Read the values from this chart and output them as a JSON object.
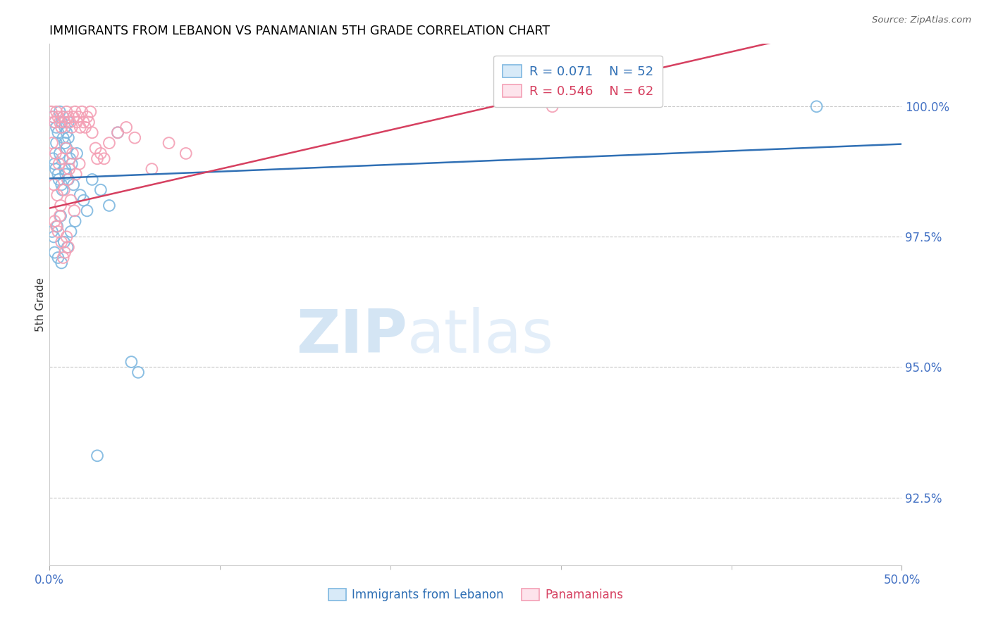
{
  "title": "IMMIGRANTS FROM LEBANON VS PANAMANIAN 5TH GRADE CORRELATION CHART",
  "source": "Source: ZipAtlas.com",
  "ylabel": "5th Grade",
  "yticks": [
    100.0,
    97.5,
    95.0,
    92.5
  ],
  "ytick_labels": [
    "100.0%",
    "97.5%",
    "95.0%",
    "92.5%"
  ],
  "ymin": 91.2,
  "ymax": 101.2,
  "xmin": 0.0,
  "xmax": 50.0,
  "legend_blue_r": "R = 0.071",
  "legend_blue_n": "N = 52",
  "legend_pink_r": "R = 0.546",
  "legend_pink_n": "N = 62",
  "blue_color": "#7fb8e0",
  "pink_color": "#f4a0b5",
  "blue_line_color": "#3070b5",
  "pink_line_color": "#d64060",
  "axis_label_color": "#4472C4",
  "title_color": "#000000",
  "watermark_zip": "ZIP",
  "watermark_atlas": "atlas",
  "blue_scatter_x": [
    0.2,
    0.3,
    0.4,
    0.5,
    0.6,
    0.7,
    0.8,
    0.9,
    1.0,
    1.1,
    0.3,
    0.5,
    0.7,
    0.9,
    1.1,
    1.3,
    0.4,
    0.6,
    0.8,
    1.0,
    0.2,
    0.35,
    0.55,
    0.75,
    0.95,
    1.2,
    1.4,
    1.6,
    1.8,
    2.0,
    2.5,
    3.0,
    3.5,
    4.0,
    1.5,
    0.15,
    0.25,
    0.45,
    0.65,
    0.85,
    1.05,
    1.25,
    0.3,
    0.5,
    0.7,
    4.8,
    2.2,
    45.0,
    0.9,
    1.1,
    5.2,
    2.8
  ],
  "blue_scatter_y": [
    99.8,
    99.7,
    99.6,
    99.5,
    99.9,
    99.7,
    99.8,
    99.6,
    99.5,
    99.7,
    98.9,
    98.7,
    98.5,
    98.8,
    98.6,
    98.9,
    99.3,
    99.1,
    99.4,
    99.2,
    99.0,
    98.8,
    98.6,
    98.4,
    98.7,
    99.0,
    98.5,
    99.1,
    98.3,
    98.2,
    98.6,
    98.4,
    98.1,
    99.5,
    97.8,
    97.6,
    97.5,
    97.7,
    97.9,
    97.4,
    97.3,
    97.6,
    97.2,
    97.1,
    97.0,
    95.1,
    98.0,
    100.0,
    99.3,
    99.4,
    94.9,
    93.3
  ],
  "pink_scatter_x": [
    0.1,
    0.2,
    0.3,
    0.4,
    0.5,
    0.6,
    0.7,
    0.8,
    0.9,
    1.0,
    1.1,
    1.2,
    1.3,
    1.4,
    1.5,
    1.6,
    1.7,
    1.8,
    1.9,
    2.0,
    2.1,
    2.2,
    2.3,
    2.4,
    2.5,
    0.15,
    0.35,
    0.55,
    0.75,
    0.95,
    1.15,
    1.35,
    1.55,
    1.75,
    2.8,
    3.0,
    3.5,
    4.0,
    0.25,
    0.45,
    0.65,
    0.85,
    1.05,
    1.25,
    1.45,
    0.3,
    0.5,
    0.7,
    4.5,
    5.0,
    2.7,
    3.2,
    6.0,
    7.0,
    8.0,
    0.9,
    1.0,
    29.5,
    1.1,
    0.4,
    0.6,
    0.8
  ],
  "pink_scatter_y": [
    99.9,
    99.8,
    99.7,
    99.9,
    99.8,
    99.7,
    99.6,
    99.8,
    99.7,
    99.9,
    99.8,
    99.7,
    99.6,
    99.8,
    99.9,
    99.7,
    99.8,
    99.6,
    99.9,
    99.7,
    99.6,
    99.8,
    99.7,
    99.9,
    99.5,
    99.3,
    99.1,
    98.9,
    99.0,
    99.2,
    98.8,
    99.1,
    98.7,
    98.9,
    99.0,
    99.1,
    99.3,
    99.5,
    98.5,
    98.3,
    98.1,
    98.4,
    98.6,
    98.2,
    98.0,
    97.8,
    97.6,
    97.4,
    99.6,
    99.4,
    99.2,
    99.0,
    98.8,
    99.3,
    99.1,
    97.2,
    97.5,
    100.0,
    97.3,
    97.7,
    97.9,
    97.1
  ]
}
